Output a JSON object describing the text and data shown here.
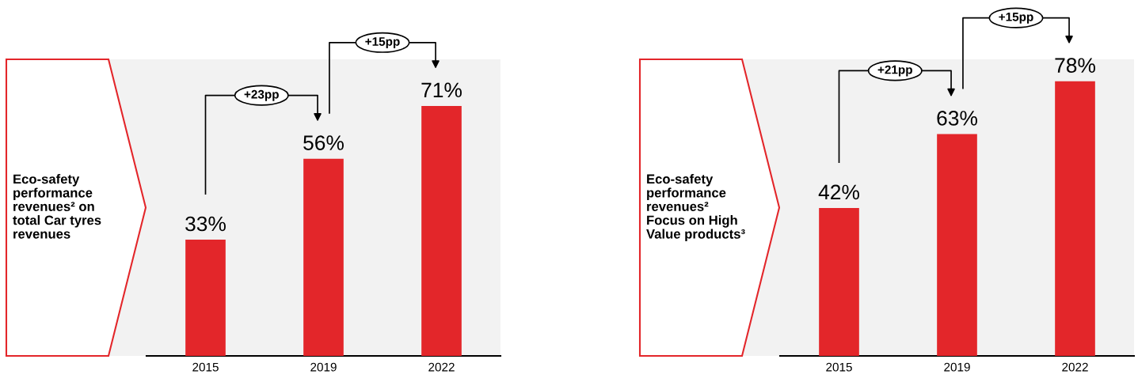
{
  "chart_data": [
    {
      "type": "bar",
      "ylabel": "Eco-safety performance revenues² on total Car tyres revenues",
      "categories": [
        "2015",
        "2019",
        "2022"
      ],
      "values": [
        33,
        56,
        71
      ],
      "value_labels": [
        "33%",
        "56%",
        "71%"
      ],
      "color": "#e3262a",
      "annotations": [
        "+23pp",
        "+15pp"
      ]
    },
    {
      "type": "bar",
      "ylabel": "Eco-safety performance revenues² Focus on High Value products³",
      "categories": [
        "2015",
        "2019",
        "2022"
      ],
      "values": [
        42,
        63,
        78
      ],
      "value_labels": [
        "42%",
        "63%",
        "78%"
      ],
      "color": "#e3262a",
      "annotations": [
        "+21pp",
        "+15pp"
      ]
    }
  ]
}
